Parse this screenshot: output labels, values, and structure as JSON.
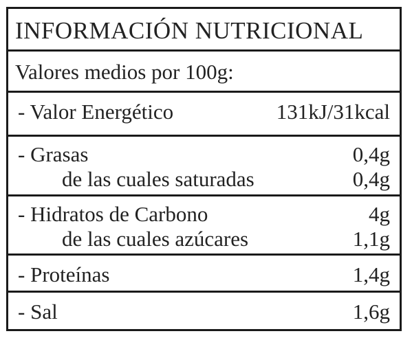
{
  "title": "INFORMACIÓN NUTRICIONAL",
  "subtitle": "Valores medios por 100g:",
  "rows": [
    {
      "label": "- Valor Energético",
      "value": "131kJ/31kcal"
    },
    {
      "label": "- Grasas",
      "value": "0,4g",
      "sub_label": "de las cuales saturadas",
      "sub_value": "0,4g"
    },
    {
      "label": "- Hidratos de Carbono",
      "value": "4g",
      "sub_label": "de las cuales azúcares",
      "sub_value": "1,1g"
    },
    {
      "label": "- Proteínas",
      "value": "1,4g"
    },
    {
      "label": "- Sal",
      "value": "1,6g"
    }
  ]
}
